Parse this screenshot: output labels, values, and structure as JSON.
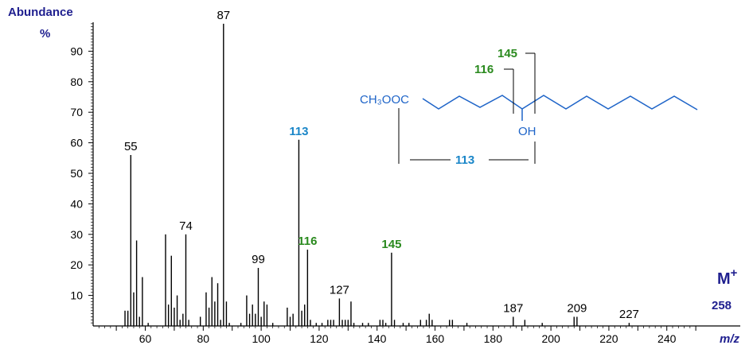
{
  "chart_data": {
    "type": "bar",
    "title": "",
    "ylabel_line1": "Abundance",
    "ylabel_line2": "%",
    "xlabel": "m/z",
    "xlim": [
      42,
      252
    ],
    "ylim": [
      0,
      100
    ],
    "x_ticks": [
      60,
      80,
      100,
      120,
      140,
      160,
      180,
      200,
      220,
      240
    ],
    "y_ticks": [
      10,
      20,
      30,
      40,
      50,
      60,
      70,
      80,
      90
    ],
    "grid": false,
    "colors": {
      "bars": "#000000",
      "axis_label": "#1f1f8f",
      "blue_label": "#1a86c8",
      "green_label": "#2a8a1e",
      "structure": "#1e64c8"
    },
    "peaks": [
      {
        "mz": 53,
        "ab": 5
      },
      {
        "mz": 54,
        "ab": 5
      },
      {
        "mz": 55,
        "ab": 56
      },
      {
        "mz": 56,
        "ab": 11
      },
      {
        "mz": 57,
        "ab": 28
      },
      {
        "mz": 58,
        "ab": 3
      },
      {
        "mz": 59,
        "ab": 16
      },
      {
        "mz": 61,
        "ab": 1
      },
      {
        "mz": 67,
        "ab": 30
      },
      {
        "mz": 68,
        "ab": 7
      },
      {
        "mz": 69,
        "ab": 23
      },
      {
        "mz": 70,
        "ab": 6
      },
      {
        "mz": 71,
        "ab": 10
      },
      {
        "mz": 72,
        "ab": 2
      },
      {
        "mz": 73,
        "ab": 4
      },
      {
        "mz": 74,
        "ab": 30
      },
      {
        "mz": 75,
        "ab": 2
      },
      {
        "mz": 79,
        "ab": 3
      },
      {
        "mz": 81,
        "ab": 11
      },
      {
        "mz": 82,
        "ab": 6
      },
      {
        "mz": 83,
        "ab": 16
      },
      {
        "mz": 84,
        "ab": 8
      },
      {
        "mz": 85,
        "ab": 14
      },
      {
        "mz": 86,
        "ab": 2
      },
      {
        "mz": 87,
        "ab": 99
      },
      {
        "mz": 88,
        "ab": 8
      },
      {
        "mz": 89,
        "ab": 1
      },
      {
        "mz": 93,
        "ab": 1
      },
      {
        "mz": 95,
        "ab": 10
      },
      {
        "mz": 96,
        "ab": 4
      },
      {
        "mz": 97,
        "ab": 7
      },
      {
        "mz": 98,
        "ab": 4
      },
      {
        "mz": 99,
        "ab": 19
      },
      {
        "mz": 100,
        "ab": 3
      },
      {
        "mz": 101,
        "ab": 8
      },
      {
        "mz": 102,
        "ab": 7
      },
      {
        "mz": 104,
        "ab": 1
      },
      {
        "mz": 109,
        "ab": 6
      },
      {
        "mz": 110,
        "ab": 3
      },
      {
        "mz": 111,
        "ab": 4
      },
      {
        "mz": 113,
        "ab": 61
      },
      {
        "mz": 114,
        "ab": 5
      },
      {
        "mz": 115,
        "ab": 7
      },
      {
        "mz": 116,
        "ab": 25
      },
      {
        "mz": 117,
        "ab": 2
      },
      {
        "mz": 119,
        "ab": 1
      },
      {
        "mz": 121,
        "ab": 1
      },
      {
        "mz": 123,
        "ab": 2
      },
      {
        "mz": 124,
        "ab": 2
      },
      {
        "mz": 125,
        "ab": 2
      },
      {
        "mz": 127,
        "ab": 9
      },
      {
        "mz": 128,
        "ab": 2
      },
      {
        "mz": 129,
        "ab": 2
      },
      {
        "mz": 130,
        "ab": 2
      },
      {
        "mz": 131,
        "ab": 8
      },
      {
        "mz": 132,
        "ab": 1
      },
      {
        "mz": 135,
        "ab": 1
      },
      {
        "mz": 137,
        "ab": 1
      },
      {
        "mz": 141,
        "ab": 2
      },
      {
        "mz": 142,
        "ab": 2
      },
      {
        "mz": 143,
        "ab": 1
      },
      {
        "mz": 145,
        "ab": 24
      },
      {
        "mz": 146,
        "ab": 2
      },
      {
        "mz": 149,
        "ab": 1
      },
      {
        "mz": 151,
        "ab": 1
      },
      {
        "mz": 155,
        "ab": 2
      },
      {
        "mz": 157,
        "ab": 2
      },
      {
        "mz": 158,
        "ab": 4
      },
      {
        "mz": 159,
        "ab": 2
      },
      {
        "mz": 165,
        "ab": 2
      },
      {
        "mz": 166,
        "ab": 2
      },
      {
        "mz": 171,
        "ab": 1
      },
      {
        "mz": 187,
        "ab": 3
      },
      {
        "mz": 191,
        "ab": 2
      },
      {
        "mz": 197,
        "ab": 1
      },
      {
        "mz": 208,
        "ab": 3
      },
      {
        "mz": 209,
        "ab": 3
      },
      {
        "mz": 227,
        "ab": 1
      }
    ],
    "peak_labels": [
      {
        "mz": 55,
        "text": "55",
        "ab": 56,
        "color": "black"
      },
      {
        "mz": 74,
        "text": "74",
        "ab": 30,
        "color": "black"
      },
      {
        "mz": 87,
        "text": "87",
        "ab": 99,
        "color": "black"
      },
      {
        "mz": 99,
        "text": "99",
        "ab": 19,
        "color": "black"
      },
      {
        "mz": 113,
        "text": "113",
        "ab": 61,
        "color": "blue"
      },
      {
        "mz": 116,
        "text": "116",
        "ab": 25,
        "color": "green"
      },
      {
        "mz": 127,
        "text": "127",
        "ab": 9,
        "color": "black"
      },
      {
        "mz": 145,
        "text": "145",
        "ab": 24,
        "color": "green"
      },
      {
        "mz": 187,
        "text": "187",
        "ab": 3,
        "color": "black"
      },
      {
        "mz": 209,
        "text": "209",
        "ab": 3,
        "color": "black"
      },
      {
        "mz": 227,
        "text": "227",
        "ab": 1,
        "color": "black"
      }
    ],
    "molecular_ion": {
      "label": "M",
      "superscript": "+",
      "value": "258"
    },
    "structure": {
      "ester_group": "CH₃OOC",
      "hydroxyl": "OH",
      "fragment_113": "113",
      "fragment_116": "116",
      "fragment_145": "145"
    }
  }
}
